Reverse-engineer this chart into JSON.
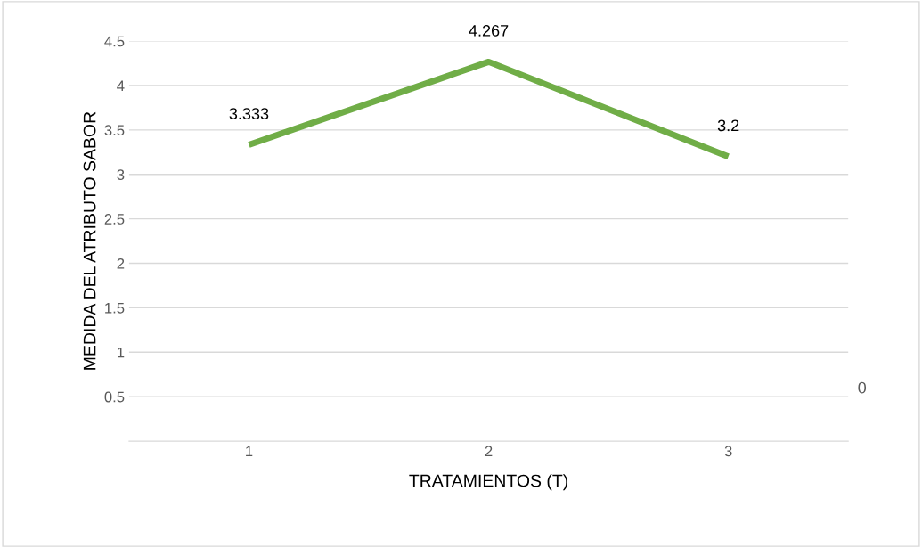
{
  "chart_data": {
    "type": "line",
    "xlabel": "TRATAMIENTOS (T)",
    "ylabel": "MEDIDA DEL ATRIBUTO SABOR",
    "categories": [
      "1",
      "2",
      "3"
    ],
    "series": [
      {
        "color": "#70ad47",
        "values": [
          3.333,
          4.267,
          3.2
        ]
      }
    ],
    "ylim": [
      0,
      4.5
    ],
    "yticks": [
      0.5,
      1,
      1.5,
      2,
      2.5,
      3,
      3.5,
      4,
      4.5
    ],
    "grid": "y",
    "data_labels": true,
    "marker": "none",
    "line_style": "solid",
    "annotations": [
      "0"
    ]
  }
}
